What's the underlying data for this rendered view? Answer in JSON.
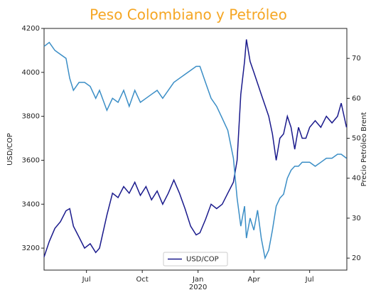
{
  "chart_data": {
    "type": "line",
    "title": "Peso Colombiano y Petróleo",
    "ylabel": "USD/COP",
    "y2label": "Precio Petróleo Brent",
    "x": [
      4.72,
      5.0,
      5.3,
      5.6,
      5.9,
      6.1,
      6.3,
      6.6,
      6.9,
      7.2,
      7.5,
      7.7,
      8.1,
      8.4,
      8.7,
      9.0,
      9.3,
      9.6,
      9.9,
      10.2,
      10.5,
      10.8,
      11.1,
      11.4,
      11.7,
      12.0,
      12.3,
      12.6,
      12.9,
      13.1,
      13.4,
      13.7,
      14.0,
      14.3,
      14.6,
      14.9,
      15.1,
      15.3,
      15.5,
      15.6,
      15.8,
      16.0,
      16.2,
      16.4,
      16.6,
      16.8,
      17.0,
      17.2,
      17.4,
      17.6,
      17.8,
      18.0,
      18.2,
      18.4,
      18.6,
      18.8,
      19.0,
      19.3,
      19.6,
      19.9,
      20.2,
      20.5,
      20.7,
      20.98
    ],
    "series": [
      {
        "name": "USD/COP",
        "color": "#1a1a8c",
        "axis": "y",
        "values": [
          3160,
          3230,
          3290,
          3320,
          3370,
          3380,
          3300,
          3250,
          3200,
          3220,
          3180,
          3200,
          3350,
          3450,
          3430,
          3480,
          3450,
          3500,
          3440,
          3480,
          3420,
          3460,
          3400,
          3450,
          3510,
          3450,
          3380,
          3300,
          3260,
          3270,
          3330,
          3400,
          3380,
          3400,
          3450,
          3500,
          3600,
          3900,
          4050,
          4150,
          4050,
          4000,
          3950,
          3900,
          3850,
          3800,
          3720,
          3600,
          3700,
          3720,
          3800,
          3750,
          3650,
          3750,
          3700,
          3700,
          3750,
          3780,
          3750,
          3800,
          3770,
          3800,
          3860,
          3750
        ]
      },
      {
        "color": "#3b8ec6",
        "axis": "y2",
        "values": [
          73,
          74,
          72,
          71,
          70,
          65,
          62,
          64,
          64,
          63,
          60,
          62,
          57,
          60,
          59,
          62,
          58,
          62,
          59,
          60,
          61,
          62,
          60,
          62,
          64,
          65,
          66,
          67,
          68,
          68,
          64,
          60,
          58,
          55,
          52,
          45,
          35,
          28,
          33,
          25,
          30,
          27,
          32,
          25,
          20,
          22,
          27,
          33,
          35,
          36,
          40,
          42,
          43,
          43,
          44,
          44,
          44,
          43,
          44,
          45,
          45,
          46,
          46,
          45
        ]
      }
    ],
    "xlim": [
      4.72,
      21.0
    ],
    "xticks": [
      {
        "value": 7,
        "label": "Jul"
      },
      {
        "value": 10,
        "label": "Oct"
      },
      {
        "value": 13,
        "label": "Jan",
        "sublabel": "2020"
      },
      {
        "value": 16,
        "label": "Apr"
      },
      {
        "value": 19,
        "label": "Jul"
      }
    ],
    "ylim": [
      3100,
      4200
    ],
    "yticks": [
      3200,
      3400,
      3600,
      3800,
      4000,
      4200
    ],
    "y2lim": [
      17,
      77.5
    ],
    "y2ticks": [
      20,
      30,
      40,
      50,
      60,
      70
    ],
    "legend": "lower center",
    "title_color": "#f5a623"
  }
}
